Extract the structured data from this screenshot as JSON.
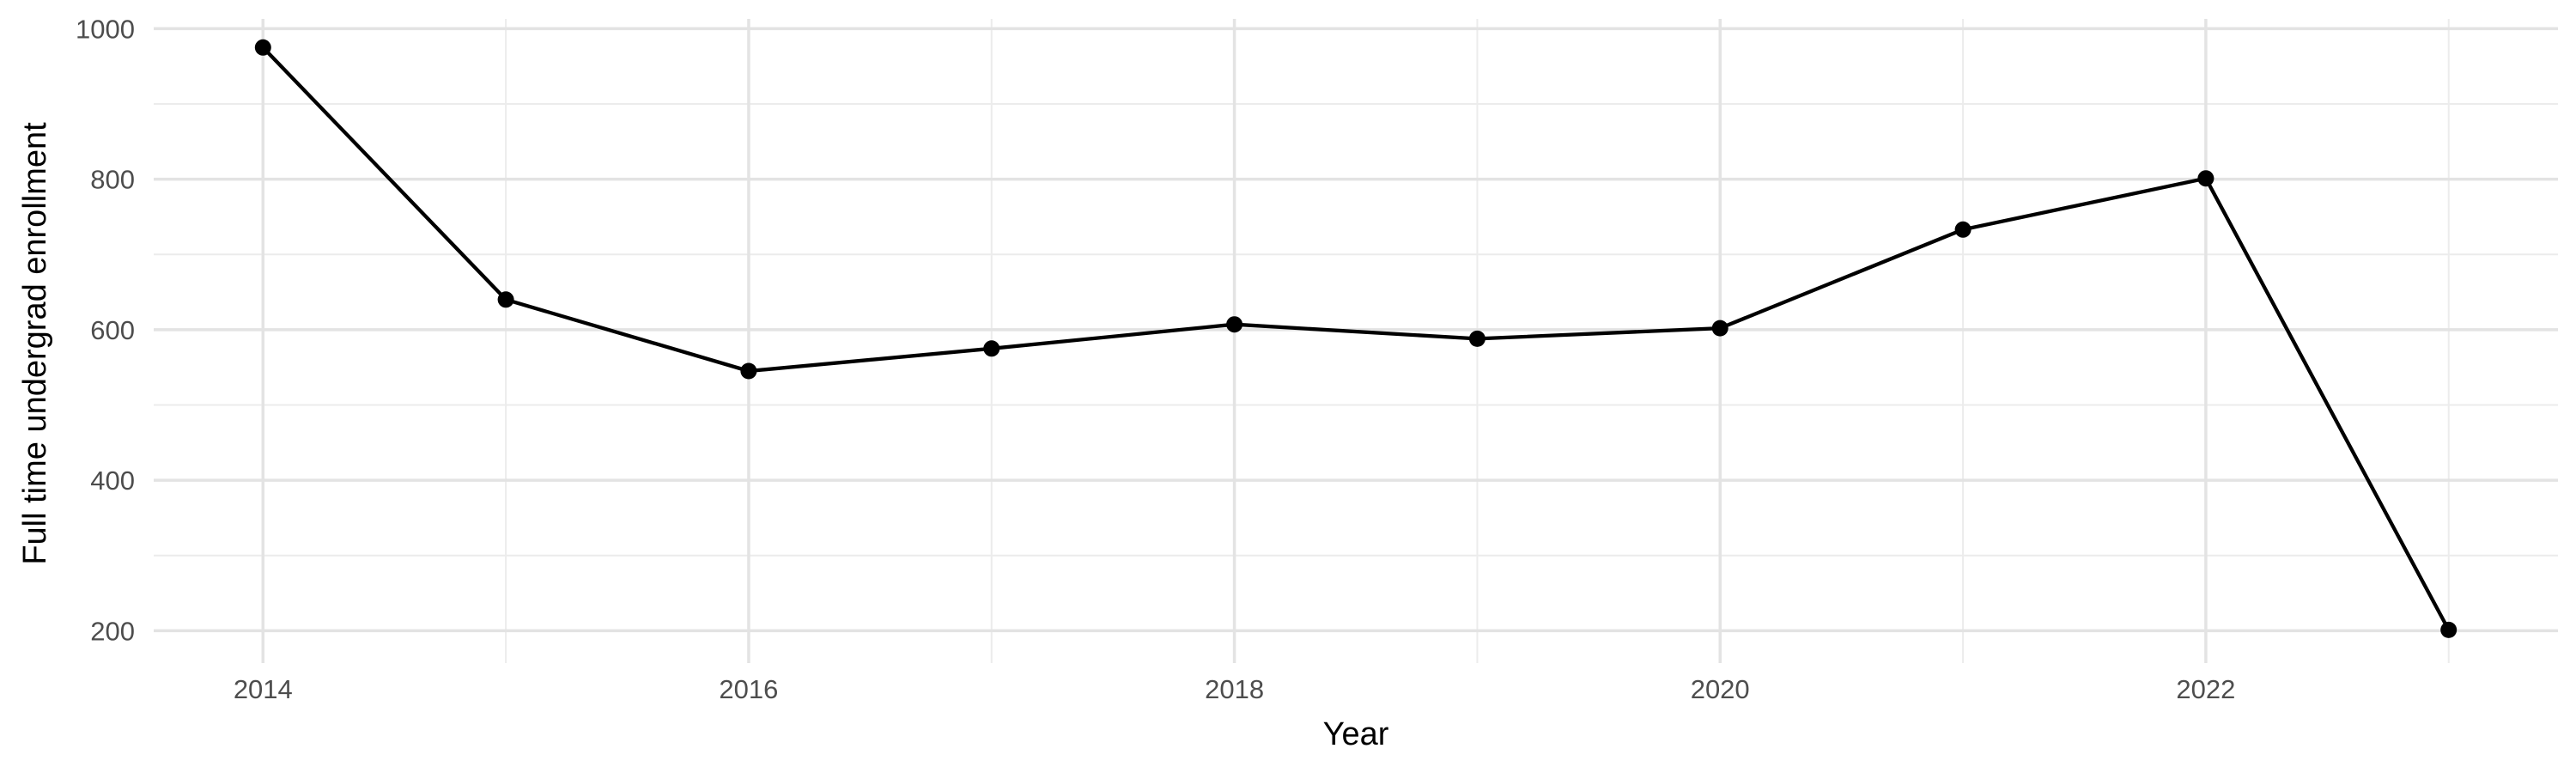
{
  "chart_data": {
    "type": "line",
    "title": "",
    "xlabel": "Year",
    "ylabel": "Full time undergrad enrollment",
    "x": [
      2014,
      2015,
      2016,
      2017,
      2018,
      2019,
      2020,
      2021,
      2022,
      2023
    ],
    "series": [
      {
        "name": "Full time undergrad enrollment",
        "values": [
          975,
          640,
          545,
          575,
          607,
          588,
          602,
          733,
          801,
          201
        ]
      }
    ],
    "x_domain": [
      2013.55,
      2023.45
    ],
    "y_domain": [
      157,
      1013
    ],
    "x_ticks_major": [
      2014,
      2016,
      2018,
      2020,
      2022
    ],
    "x_ticks_minor": [
      2015,
      2017,
      2019,
      2021,
      2023
    ],
    "y_ticks_major": [
      200,
      400,
      600,
      800,
      1000
    ],
    "y_ticks_minor": [
      300,
      500,
      700,
      900
    ],
    "grid": "major+minor, no axis lines, no tick marks",
    "legend": "none",
    "colors": {
      "line": "#000000",
      "point": "#000000",
      "grid_major": "#e3e3e3",
      "grid_minor": "#ececec",
      "tick_text": "#4d4d4d",
      "axis_title": "#000000",
      "background": "#ffffff"
    }
  }
}
